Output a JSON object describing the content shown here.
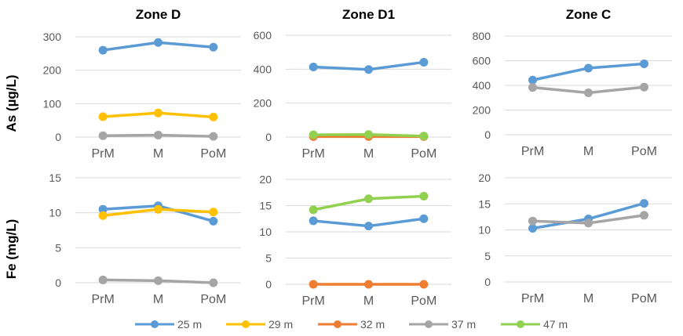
{
  "figure": {
    "row_labels": [
      "As (µg/L)",
      "Fe (mg/L)"
    ],
    "legend": [
      {
        "name": "25 m",
        "color": "#5b9bd5"
      },
      {
        "name": "29 m",
        "color": "#ffc000"
      },
      {
        "name": "32 m",
        "color": "#ed7d31"
      },
      {
        "name": "37 m",
        "color": "#a5a5a5"
      },
      {
        "name": "47 m",
        "color": "#92d050"
      }
    ]
  },
  "chart_data": [
    {
      "type": "line",
      "title": "Zone D",
      "ylabel": "As (µg/L)",
      "categories": [
        "PrM",
        "M",
        "PoM"
      ],
      "ylim": [
        0,
        300
      ],
      "yticks": [
        0,
        100,
        200,
        300
      ],
      "grid": true,
      "series": [
        {
          "name": "25 m",
          "color": "#5b9bd5",
          "values": [
            260,
            283,
            269
          ]
        },
        {
          "name": "29 m",
          "color": "#ffc000",
          "values": [
            61,
            72,
            60
          ]
        },
        {
          "name": "37 m",
          "color": "#a5a5a5",
          "values": [
            4,
            6,
            2
          ]
        }
      ]
    },
    {
      "type": "line",
      "title": "Zone D1",
      "ylabel": "",
      "categories": [
        "PrM",
        "M",
        "PoM"
      ],
      "ylim": [
        0,
        600
      ],
      "yticks": [
        0,
        200,
        400,
        600
      ],
      "grid": true,
      "series": [
        {
          "name": "25 m",
          "color": "#5b9bd5",
          "values": [
            413,
            398,
            441
          ]
        },
        {
          "name": "32 m",
          "color": "#ed7d31",
          "values": [
            3,
            3,
            3
          ]
        },
        {
          "name": "47 m",
          "color": "#92d050",
          "values": [
            13,
            15,
            6
          ]
        }
      ]
    },
    {
      "type": "line",
      "title": "Zone C",
      "ylabel": "",
      "categories": [
        "PrM",
        "M",
        "PoM"
      ],
      "ylim": [
        0,
        800
      ],
      "yticks": [
        0,
        200,
        400,
        600,
        800
      ],
      "grid": true,
      "series": [
        {
          "name": "25 m",
          "color": "#5b9bd5",
          "values": [
            443,
            540,
            575
          ]
        },
        {
          "name": "37 m",
          "color": "#a5a5a5",
          "values": [
            383,
            340,
            386
          ]
        }
      ]
    },
    {
      "type": "line",
      "title": "",
      "ylabel": "Fe (mg/L)",
      "categories": [
        "PrM",
        "M",
        "PoM"
      ],
      "ylim": [
        0,
        15
      ],
      "yticks": [
        0,
        5,
        10,
        15
      ],
      "grid": true,
      "series": [
        {
          "name": "25 m",
          "color": "#5b9bd5",
          "values": [
            10.5,
            11.0,
            8.8
          ]
        },
        {
          "name": "29 m",
          "color": "#ffc000",
          "values": [
            9.6,
            10.5,
            10.1
          ]
        },
        {
          "name": "37 m",
          "color": "#a5a5a5",
          "values": [
            0.4,
            0.3,
            0.0
          ]
        }
      ]
    },
    {
      "type": "line",
      "title": "",
      "ylabel": "",
      "categories": [
        "PrM",
        "M",
        "PoM"
      ],
      "ylim": [
        0,
        20
      ],
      "yticks": [
        0,
        5,
        10,
        15,
        20
      ],
      "grid": true,
      "series": [
        {
          "name": "25 m",
          "color": "#5b9bd5",
          "values": [
            12.1,
            11.1,
            12.5
          ]
        },
        {
          "name": "32 m",
          "color": "#ed7d31",
          "values": [
            0.0,
            0.0,
            0.0
          ]
        },
        {
          "name": "47 m",
          "color": "#92d050",
          "values": [
            14.2,
            16.3,
            16.8
          ]
        }
      ]
    },
    {
      "type": "line",
      "title": "",
      "ylabel": "",
      "categories": [
        "PrM",
        "M",
        "PoM"
      ],
      "ylim": [
        0,
        20
      ],
      "yticks": [
        0,
        5,
        10,
        15,
        20
      ],
      "grid": true,
      "series": [
        {
          "name": "25 m",
          "color": "#5b9bd5",
          "values": [
            10.3,
            12.1,
            15.1
          ]
        },
        {
          "name": "37 m",
          "color": "#a5a5a5",
          "values": [
            11.7,
            11.3,
            12.8
          ]
        }
      ]
    }
  ]
}
